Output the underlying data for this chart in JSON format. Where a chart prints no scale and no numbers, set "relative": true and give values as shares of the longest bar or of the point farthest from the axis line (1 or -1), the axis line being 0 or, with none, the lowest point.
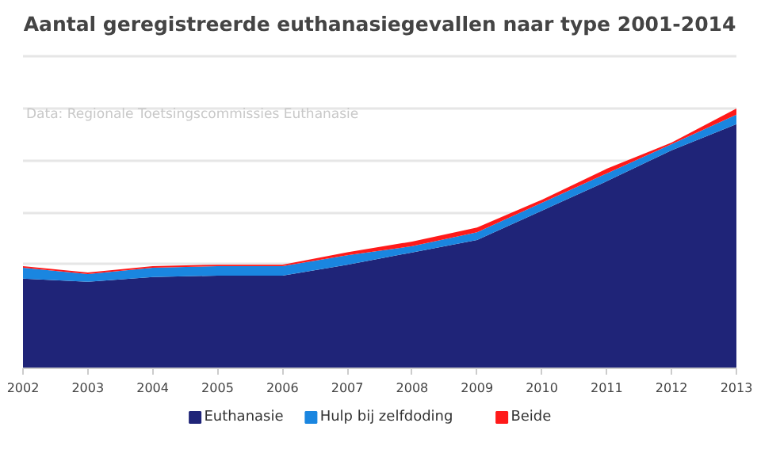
{
  "chart_data": {
    "type": "area",
    "title": "Aantal geregistreerde euthanasiegevallen naar type 2001-2014",
    "relative": true,
    "stacked": true,
    "x": [
      2002,
      2003,
      2004,
      2005,
      2006,
      2007,
      2008,
      2009,
      2010,
      2011,
      2012,
      2013
    ],
    "xlim": [
      2002,
      2013
    ],
    "xticks": [
      2002,
      2003,
      2004,
      2005,
      2006,
      2007,
      2008,
      2009,
      2010,
      2011,
      2012,
      2013
    ],
    "series": [
      {
        "name": "Euthanasie",
        "color": "#1f2478",
        "values": [
          0.345,
          0.333,
          0.351,
          0.357,
          0.357,
          0.399,
          0.446,
          0.494,
          0.607,
          0.72,
          0.839,
          0.94
        ]
      },
      {
        "name": "Hulp bij zelfdoding",
        "color": "#1a86e0",
        "values": [
          0.042,
          0.03,
          0.036,
          0.036,
          0.036,
          0.036,
          0.024,
          0.03,
          0.03,
          0.03,
          0.024,
          0.036
        ]
      },
      {
        "name": "Beide",
        "color": "#ff1a1a",
        "values": [
          0.006,
          0.006,
          0.006,
          0.006,
          0.006,
          0.012,
          0.018,
          0.018,
          0.012,
          0.018,
          0.006,
          0.024
        ]
      }
    ],
    "annotations": [
      "Data: Regionale Toetsingscommissies Euthanasie"
    ],
    "grid": "y",
    "legend": "bottom"
  }
}
